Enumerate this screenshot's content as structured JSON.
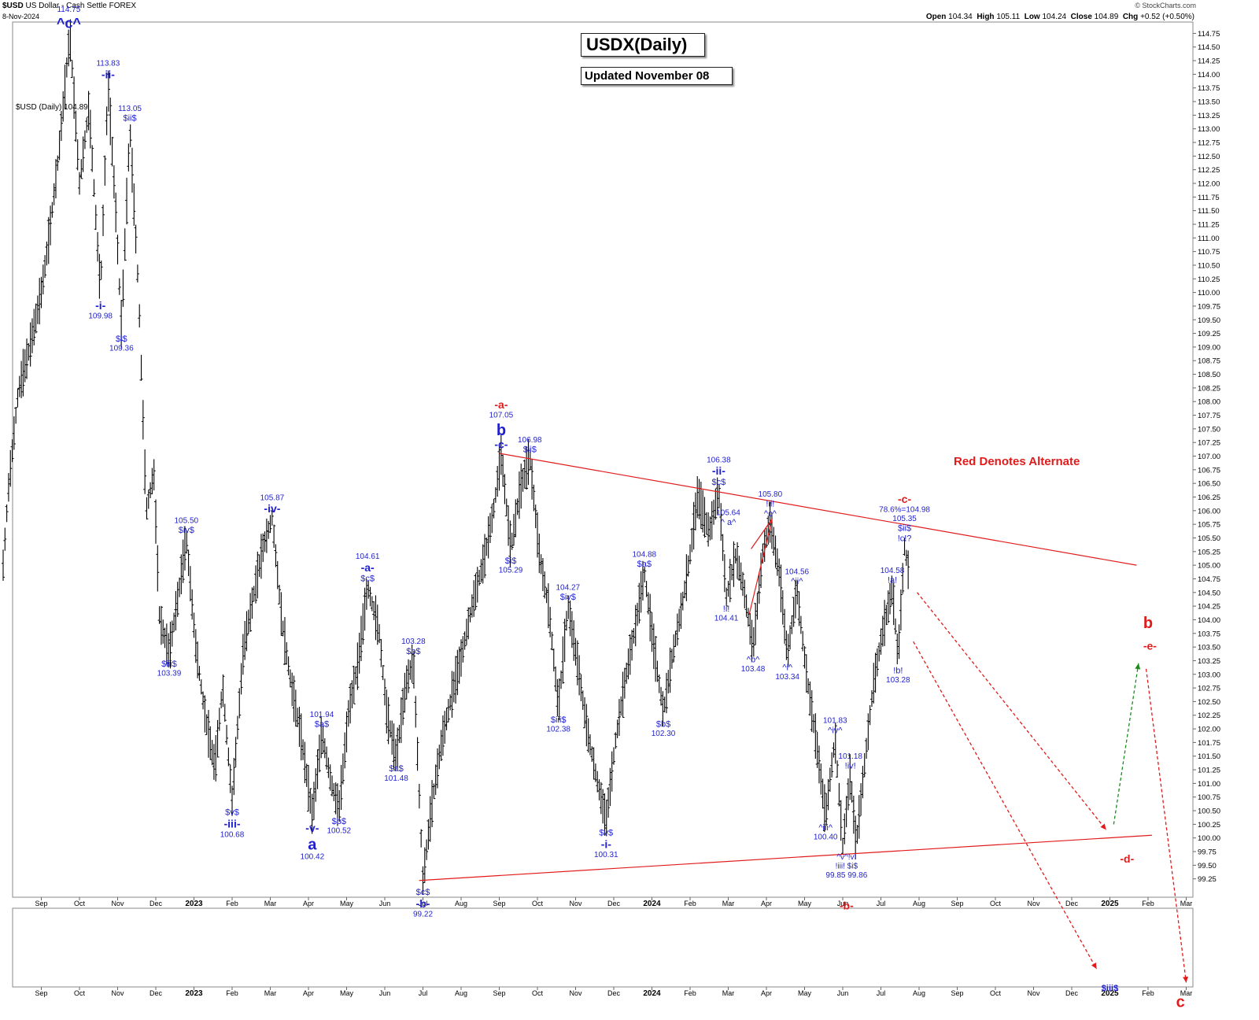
{
  "header": {
    "symbol": "$USD",
    "name": "US Dollar - Cash Settle",
    "exchange": "FOREX",
    "date": "8-Nov-2024",
    "brand": "© StockCharts.com",
    "open_label": "Open",
    "open": "104.34",
    "high_label": "High",
    "high": "105.11",
    "low_label": "Low",
    "low": "104.24",
    "close_label": "Close",
    "close": "104.89",
    "chg_label": "Chg",
    "chg": "+0.52 (+0.50%)"
  },
  "title_box": "USDX(Daily)",
  "updated_box": "Updated November 08",
  "alternate_note": "Red Denotes Alternate",
  "colors": {
    "wave_blue": "#1f1fd0",
    "alternate_red": "#e11b1b",
    "projection_green": "#1a8a1a",
    "bars": "#000000"
  },
  "chart_data": {
    "type": "bar",
    "subtype": "ohlc-daily",
    "plot_label": "$USD (Daily) 104.89",
    "y_axis_side": "right",
    "ylim": [
      99.0,
      114.9
    ],
    "y_ticks": [
      "99.25",
      "99.50",
      "99.75",
      "100.00",
      "100.25",
      "100.50",
      "100.75",
      "101.00",
      "101.25",
      "101.50",
      "101.75",
      "102.00",
      "102.25",
      "102.50",
      "102.75",
      "103.00",
      "103.25",
      "103.50",
      "103.75",
      "104.00",
      "104.25",
      "104.50",
      "104.75",
      "105.00",
      "105.25",
      "105.50",
      "105.75",
      "106.00",
      "106.25",
      "106.50",
      "106.75",
      "107.00",
      "107.25",
      "107.50",
      "107.75",
      "108.00",
      "108.25",
      "108.50",
      "108.75",
      "109.00",
      "109.25",
      "109.50",
      "109.75",
      "110.00",
      "110.25",
      "110.50",
      "110.75",
      "111.00",
      "111.25",
      "111.50",
      "111.75",
      "112.00",
      "112.25",
      "112.50",
      "112.75",
      "113.00",
      "113.25",
      "113.50",
      "113.75",
      "114.00",
      "114.25",
      "114.50",
      "114.75"
    ],
    "x_labels": [
      "Sep",
      "Oct",
      "Nov",
      "Dec",
      "2023",
      "Feb",
      "Mar",
      "Apr",
      "May",
      "Jun",
      "Jul",
      "Aug",
      "Sep",
      "Oct",
      "Nov",
      "Dec",
      "2024",
      "Feb",
      "Mar",
      "Apr",
      "May",
      "Jun",
      "Jul",
      "Aug",
      "Sep",
      "Oct",
      "Nov",
      "Dec",
      "2025",
      "Feb",
      "Mar"
    ],
    "x_label_t": [
      1,
      2,
      3,
      4,
      5,
      6,
      7,
      8,
      9,
      10,
      11,
      12,
      13,
      14,
      15,
      16,
      17,
      18,
      19,
      20,
      21,
      22,
      23,
      24,
      25,
      26,
      27,
      28,
      29,
      30,
      31
    ],
    "bold_x_labels": [
      "2023",
      "2024",
      "2025"
    ],
    "price_path": [
      [
        0.0,
        105.0
      ],
      [
        0.15,
        106.5
      ],
      [
        0.4,
        108.2
      ],
      [
        0.7,
        109.0
      ],
      [
        1.0,
        110.0
      ],
      [
        1.2,
        111.0
      ],
      [
        1.45,
        112.5
      ],
      [
        1.75,
        114.75
      ],
      [
        2.0,
        112.0
      ],
      [
        2.25,
        113.4
      ],
      [
        2.55,
        110.0
      ],
      [
        2.75,
        113.83
      ],
      [
        2.95,
        111.5
      ],
      [
        3.1,
        109.36
      ],
      [
        3.32,
        113.05
      ],
      [
        3.55,
        110.0
      ],
      [
        3.75,
        106.0
      ],
      [
        3.95,
        106.7
      ],
      [
        4.1,
        104.0
      ],
      [
        4.35,
        103.4
      ],
      [
        4.6,
        104.5
      ],
      [
        4.8,
        105.5
      ],
      [
        5.05,
        103.5
      ],
      [
        5.3,
        102.2
      ],
      [
        5.55,
        101.3
      ],
      [
        5.75,
        102.8
      ],
      [
        6.0,
        100.68
      ],
      [
        6.3,
        103.5
      ],
      [
        6.55,
        104.4
      ],
      [
        6.8,
        105.3
      ],
      [
        7.05,
        105.87
      ],
      [
        7.3,
        104.0
      ],
      [
        7.55,
        102.8
      ],
      [
        7.8,
        101.9
      ],
      [
        8.1,
        100.42
      ],
      [
        8.35,
        101.94
      ],
      [
        8.6,
        101.0
      ],
      [
        8.8,
        100.52
      ],
      [
        9.05,
        102.3
      ],
      [
        9.3,
        103.2
      ],
      [
        9.55,
        104.61
      ],
      [
        9.85,
        103.8
      ],
      [
        10.05,
        102.3
      ],
      [
        10.3,
        101.48
      ],
      [
        10.55,
        102.8
      ],
      [
        10.75,
        103.28
      ],
      [
        11.0,
        99.22
      ],
      [
        11.25,
        100.7
      ],
      [
        11.5,
        101.8
      ],
      [
        11.75,
        102.6
      ],
      [
        12.0,
        103.3
      ],
      [
        12.3,
        104.3
      ],
      [
        12.6,
        105.1
      ],
      [
        12.85,
        106.0
      ],
      [
        13.05,
        107.05
      ],
      [
        13.3,
        105.29
      ],
      [
        13.55,
        106.4
      ],
      [
        13.8,
        106.98
      ],
      [
        14.05,
        105.2
      ],
      [
        14.3,
        104.2
      ],
      [
        14.55,
        102.38
      ],
      [
        14.8,
        104.27
      ],
      [
        15.05,
        103.2
      ],
      [
        15.3,
        102.0
      ],
      [
        15.55,
        101.1
      ],
      [
        15.8,
        100.31
      ],
      [
        16.05,
        101.8
      ],
      [
        16.3,
        102.9
      ],
      [
        16.55,
        103.8
      ],
      [
        16.8,
        104.88
      ],
      [
        17.05,
        103.5
      ],
      [
        17.3,
        102.3
      ],
      [
        17.55,
        103.4
      ],
      [
        17.8,
        104.3
      ],
      [
        18.0,
        105.2
      ],
      [
        18.2,
        106.3
      ],
      [
        18.5,
        105.6
      ],
      [
        18.75,
        106.38
      ],
      [
        18.95,
        104.41
      ],
      [
        19.2,
        105.2
      ],
      [
        19.4,
        104.6
      ],
      [
        19.65,
        103.48
      ],
      [
        19.9,
        105.2
      ],
      [
        20.1,
        105.8
      ],
      [
        20.35,
        104.8
      ],
      [
        20.55,
        103.34
      ],
      [
        20.8,
        104.56
      ],
      [
        21.05,
        103.0
      ],
      [
        21.3,
        101.8
      ],
      [
        21.55,
        100.4
      ],
      [
        21.8,
        101.83
      ],
      [
        22.0,
        99.85
      ],
      [
        22.2,
        101.18
      ],
      [
        22.35,
        99.86
      ],
      [
        22.55,
        101.2
      ],
      [
        22.8,
        102.8
      ],
      [
        23.05,
        103.8
      ],
      [
        23.3,
        104.58
      ],
      [
        23.45,
        103.28
      ],
      [
        23.62,
        105.35
      ],
      [
        23.72,
        104.89
      ]
    ],
    "wave_labels": [
      {
        "t": 1.72,
        "price": 114.75,
        "lines": [
          "114.75",
          "^c^"
        ],
        "sizes": [
          10,
          18
        ],
        "color": "blue",
        "pos": "above"
      },
      {
        "t": 2.75,
        "price": 113.83,
        "lines": [
          "113.83",
          "-ii-"
        ],
        "sizes": [
          10,
          14
        ],
        "color": "blue",
        "pos": "above"
      },
      {
        "t": 3.32,
        "price": 113.05,
        "lines": [
          "113.05",
          "$ii$"
        ],
        "sizes": [
          10,
          11
        ],
        "color": "blue",
        "pos": "above"
      },
      {
        "t": 2.55,
        "price": 110.0,
        "lines": [
          "-i-",
          "109.98"
        ],
        "sizes": [
          14,
          10
        ],
        "color": "blue",
        "pos": "below"
      },
      {
        "t": 3.1,
        "price": 109.36,
        "lines": [
          "$i$",
          "109.36"
        ],
        "sizes": [
          11,
          10
        ],
        "color": "blue",
        "pos": "below"
      },
      {
        "t": 4.35,
        "price": 103.4,
        "lines": [
          "$iii$",
          "103.39"
        ],
        "sizes": [
          11,
          10
        ],
        "color": "blue",
        "pos": "below"
      },
      {
        "t": 4.8,
        "price": 105.5,
        "lines": [
          "105.50",
          "$iv$"
        ],
        "sizes": [
          10,
          11
        ],
        "color": "blue",
        "pos": "above"
      },
      {
        "t": 6.0,
        "price": 100.68,
        "lines": [
          "$v$",
          "-iii-",
          "100.68"
        ],
        "sizes": [
          11,
          14,
          10
        ],
        "color": "blue",
        "pos": "below"
      },
      {
        "t": 7.05,
        "price": 105.87,
        "lines": [
          "105.87",
          "-iv-"
        ],
        "sizes": [
          10,
          14
        ],
        "color": "blue",
        "pos": "above"
      },
      {
        "t": 8.1,
        "price": 100.42,
        "lines": [
          "-v-",
          "a",
          "100.42"
        ],
        "sizes": [
          14,
          20,
          10
        ],
        "color": "blue",
        "pos": "below"
      },
      {
        "t": 8.35,
        "price": 101.94,
        "lines": [
          "101.94",
          "$a$"
        ],
        "sizes": [
          10,
          11
        ],
        "color": "blue",
        "pos": "above"
      },
      {
        "t": 8.8,
        "price": 100.52,
        "lines": [
          "$b$",
          "100.52"
        ],
        "sizes": [
          11,
          10
        ],
        "color": "blue",
        "pos": "below"
      },
      {
        "t": 9.55,
        "price": 104.61,
        "lines": [
          "104.61",
          "-a-",
          "$c$"
        ],
        "sizes": [
          10,
          14,
          11
        ],
        "color": "blue",
        "pos": "above"
      },
      {
        "t": 10.3,
        "price": 101.48,
        "lines": [
          "$a$",
          "101.48"
        ],
        "sizes": [
          11,
          10
        ],
        "color": "blue",
        "pos": "below"
      },
      {
        "t": 10.75,
        "price": 103.28,
        "lines": [
          "103.28",
          "$b$"
        ],
        "sizes": [
          10,
          11
        ],
        "color": "blue",
        "pos": "above"
      },
      {
        "t": 11.0,
        "price": 99.22,
        "lines": [
          "$c$",
          "-b-",
          "99.22"
        ],
        "sizes": [
          11,
          14,
          10
        ],
        "color": "blue",
        "pos": "below"
      },
      {
        "t": 13.05,
        "price": 107.05,
        "lines": [
          "-a-",
          "107.05",
          "b",
          "-c-"
        ],
        "sizes": [
          14,
          10,
          20,
          14
        ],
        "color": "mixed",
        "pos": "above"
      },
      {
        "t": 13.3,
        "price": 105.29,
        "lines": [
          "$i$",
          "105.29"
        ],
        "sizes": [
          11,
          10
        ],
        "color": "blue",
        "pos": "below"
      },
      {
        "t": 13.8,
        "price": 106.98,
        "lines": [
          "106.98",
          "$ii$"
        ],
        "sizes": [
          10,
          11
        ],
        "color": "blue",
        "pos": "above"
      },
      {
        "t": 14.55,
        "price": 102.38,
        "lines": [
          "$iii$",
          "102.38"
        ],
        "sizes": [
          11,
          10
        ],
        "color": "blue",
        "pos": "below"
      },
      {
        "t": 14.8,
        "price": 104.27,
        "lines": [
          "104.27",
          "$iv$"
        ],
        "sizes": [
          10,
          11
        ],
        "color": "blue",
        "pos": "above"
      },
      {
        "t": 15.8,
        "price": 100.31,
        "lines": [
          "$v$",
          "-i-",
          "100.31"
        ],
        "sizes": [
          11,
          14,
          10
        ],
        "color": "blue",
        "pos": "below"
      },
      {
        "t": 16.8,
        "price": 104.88,
        "lines": [
          "104.88",
          "$a$"
        ],
        "sizes": [
          10,
          11
        ],
        "color": "blue",
        "pos": "above"
      },
      {
        "t": 17.3,
        "price": 102.3,
        "lines": [
          "$b$",
          "102.30"
        ],
        "sizes": [
          11,
          10
        ],
        "color": "blue",
        "pos": "below"
      },
      {
        "t": 18.75,
        "price": 106.38,
        "lines": [
          "106.38",
          "-ii-",
          "$c$"
        ],
        "sizes": [
          10,
          14,
          11
        ],
        "color": "blue",
        "pos": "above"
      },
      {
        "t": 18.95,
        "price": 104.41,
        "lines": [
          "!i!",
          "104.41"
        ],
        "sizes": [
          11,
          10
        ],
        "color": "blue",
        "pos": "below"
      },
      {
        "t": 19.0,
        "price": 105.64,
        "lines": [
          "105.64",
          "^ a^"
        ],
        "sizes": [
          10,
          11
        ],
        "color": "blue",
        "pos": "above"
      },
      {
        "t": 19.65,
        "price": 103.48,
        "lines": [
          "^b^",
          "103.48"
        ],
        "sizes": [
          11,
          10
        ],
        "color": "blue",
        "pos": "below"
      },
      {
        "t": 20.1,
        "price": 105.8,
        "lines": [
          "105.80",
          "!ii!",
          "^c^"
        ],
        "sizes": [
          10,
          11,
          11
        ],
        "color": "blue",
        "pos": "above"
      },
      {
        "t": 20.55,
        "price": 103.34,
        "lines": [
          "^i^",
          "103.34"
        ],
        "sizes": [
          11,
          10
        ],
        "color": "blue",
        "pos": "below"
      },
      {
        "t": 20.8,
        "price": 104.56,
        "lines": [
          "104.56",
          "^ii^"
        ],
        "sizes": [
          10,
          11
        ],
        "color": "blue",
        "pos": "above"
      },
      {
        "t": 21.55,
        "price": 100.4,
        "lines": [
          "^iii^",
          "100.40"
        ],
        "sizes": [
          11,
          10
        ],
        "color": "blue",
        "pos": "below"
      },
      {
        "t": 21.8,
        "price": 101.83,
        "lines": [
          "101.83",
          "^iv^"
        ],
        "sizes": [
          10,
          11
        ],
        "color": "blue",
        "pos": "above"
      },
      {
        "t": 22.2,
        "price": 101.18,
        "lines": [
          "101.18",
          "!iv!"
        ],
        "sizes": [
          10,
          11
        ],
        "color": "blue",
        "pos": "above"
      },
      {
        "t": 22.1,
        "price": 99.85,
        "lines": [
          "^v^!v!",
          "!iii! $i$",
          "99.85 99.86"
        ],
        "sizes": [
          10,
          10,
          10
        ],
        "color": "blue",
        "pos": "below"
      },
      {
        "t": 22.1,
        "price": 99.0,
        "lines": [
          "-b-"
        ],
        "sizes": [
          14
        ],
        "color": "red",
        "pos": "below"
      },
      {
        "t": 23.3,
        "price": 104.58,
        "lines": [
          "104.58",
          "!a!"
        ],
        "sizes": [
          10,
          11
        ],
        "color": "blue",
        "pos": "above"
      },
      {
        "t": 23.45,
        "price": 103.28,
        "lines": [
          "!b!",
          "103.28"
        ],
        "sizes": [
          11,
          10
        ],
        "color": "blue",
        "pos": "below"
      },
      {
        "t": 23.62,
        "price": 105.35,
        "lines": [
          "-c-",
          "78.6%=104.98",
          "105.35",
          "$ii$",
          "!c!?"
        ],
        "sizes": [
          14,
          10,
          10,
          11,
          11
        ],
        "color": "mixed",
        "pos": "above"
      }
    ],
    "projection_labels": {
      "d_label": "-d-",
      "b_label": "b",
      "e_label": "-e-",
      "c_label": "c",
      "iii_label": "$iii$"
    }
  }
}
